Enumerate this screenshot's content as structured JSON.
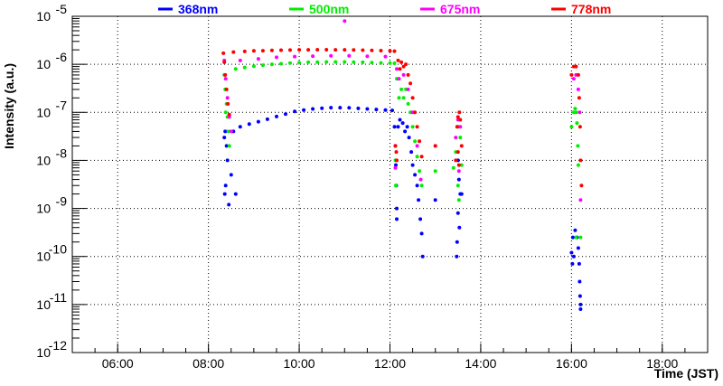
{
  "chart_data": {
    "type": "scatter",
    "xlabel": "Time (JST)",
    "ylabel": "Intensity (a.u.)",
    "x_unit": "hours",
    "xlim": [
      5.0,
      19.0
    ],
    "ylim": [
      1e-12,
      1e-05
    ],
    "yscale": "log",
    "grid": true,
    "legend_position": "top",
    "x_ticks": [
      {
        "value": 6,
        "label": "06:00"
      },
      {
        "value": 8,
        "label": "08:00"
      },
      {
        "value": 10,
        "label": "10:00"
      },
      {
        "value": 12,
        "label": "12:00"
      },
      {
        "value": 14,
        "label": "14:00"
      },
      {
        "value": 16,
        "label": "16:00"
      },
      {
        "value": 18,
        "label": "18:00"
      }
    ],
    "y_ticks": [
      {
        "value": 1e-12,
        "mantissa": "10",
        "exponent": "-12"
      },
      {
        "value": 1e-11,
        "mantissa": "10",
        "exponent": "-11"
      },
      {
        "value": 1e-10,
        "mantissa": "10",
        "exponent": "-10"
      },
      {
        "value": 1e-09,
        "mantissa": "10",
        "exponent": "-9"
      },
      {
        "value": 1e-08,
        "mantissa": "10",
        "exponent": "-8"
      },
      {
        "value": 1e-07,
        "mantissa": "10",
        "exponent": "-7"
      },
      {
        "value": 1e-06,
        "mantissa": "10",
        "exponent": "-6"
      },
      {
        "value": 1e-05,
        "mantissa": "10",
        "exponent": "-5"
      }
    ],
    "series": [
      {
        "name": "368nm",
        "color": "#0000ff",
        "points": [
          [
            8.35,
            3e-08
          ],
          [
            8.37,
            4e-08
          ],
          [
            8.4,
            2e-08
          ],
          [
            8.42,
            1e-08
          ],
          [
            8.38,
            3e-09
          ],
          [
            8.36,
            2e-09
          ],
          [
            8.45,
            1.2e-09
          ],
          [
            8.5,
            5e-09
          ],
          [
            8.6,
            2e-09
          ],
          [
            8.55,
            4e-08
          ],
          [
            8.7,
            5e-08
          ],
          [
            8.9,
            5.7e-08
          ],
          [
            9.1,
            6.4e-08
          ],
          [
            9.3,
            7.2e-08
          ],
          [
            9.5,
            8.2e-08
          ],
          [
            9.7,
            9.2e-08
          ],
          [
            9.9,
            1.05e-07
          ],
          [
            10.1,
            1.12e-07
          ],
          [
            10.3,
            1.18e-07
          ],
          [
            10.5,
            1.22e-07
          ],
          [
            10.7,
            1.25e-07
          ],
          [
            10.9,
            1.25e-07
          ],
          [
            11.1,
            1.24e-07
          ],
          [
            11.3,
            1.21e-07
          ],
          [
            11.5,
            1.18e-07
          ],
          [
            11.7,
            1.15e-07
          ],
          [
            11.9,
            1.12e-07
          ],
          [
            12.05,
            1.1e-07
          ],
          [
            12.1,
            5e-08
          ],
          [
            12.12,
            2e-08
          ],
          [
            12.13,
            8e-09
          ],
          [
            12.14,
            3e-09
          ],
          [
            12.15,
            1e-09
          ],
          [
            12.15,
            6e-10
          ],
          [
            12.18,
            5e-08
          ],
          [
            12.22,
            7e-08
          ],
          [
            12.28,
            6e-08
          ],
          [
            12.33,
            4e-08
          ],
          [
            12.38,
            5e-08
          ],
          [
            12.42,
            3e-08
          ],
          [
            12.47,
            1.5e-08
          ],
          [
            12.5,
            8e-09
          ],
          [
            12.55,
            5e-09
          ],
          [
            12.6,
            3e-09
          ],
          [
            12.63,
            1.5e-09
          ],
          [
            12.67,
            6e-10
          ],
          [
            12.7,
            3e-10
          ],
          [
            12.72,
            1e-10
          ],
          [
            13.0,
            1.5e-09
          ],
          [
            13.5,
            1e-08
          ],
          [
            13.52,
            4e-09
          ],
          [
            13.55,
            2e-09
          ],
          [
            13.5,
            8e-10
          ],
          [
            13.53,
            4e-10
          ],
          [
            13.48,
            2e-10
          ],
          [
            13.47,
            1e-10
          ],
          [
            13.58,
            2e-09
          ],
          [
            16.0,
            1.2e-10
          ],
          [
            16.03,
            2.5e-10
          ],
          [
            16.08,
            3.5e-10
          ],
          [
            16.12,
            2.5e-10
          ],
          [
            16.15,
            1.5e-10
          ],
          [
            16.17,
            7e-11
          ],
          [
            16.18,
            3e-11
          ],
          [
            16.19,
            1.5e-11
          ],
          [
            16.2,
            1e-11
          ],
          [
            16.2,
            8e-12
          ],
          [
            16.05,
            1e-10
          ],
          [
            16.02,
            7e-11
          ]
        ]
      },
      {
        "name": "500nm",
        "color": "#00ee00",
        "points": [
          [
            8.35,
            6e-07
          ],
          [
            8.37,
            3e-07
          ],
          [
            8.4,
            1.5e-07
          ],
          [
            8.42,
            8e-08
          ],
          [
            8.44,
            4e-08
          ],
          [
            8.46,
            2e-08
          ],
          [
            8.38,
            1e-07
          ],
          [
            8.6,
            8e-07
          ],
          [
            8.8,
            8.6e-07
          ],
          [
            9.0,
            9.1e-07
          ],
          [
            9.2,
            9.6e-07
          ],
          [
            9.4,
            1e-06
          ],
          [
            9.6,
            1.03e-06
          ],
          [
            9.8,
            1.06e-06
          ],
          [
            10.0,
            1.08e-06
          ],
          [
            10.2,
            1.1e-06
          ],
          [
            10.4,
            1.11e-06
          ],
          [
            10.6,
            1.12e-06
          ],
          [
            10.8,
            1.12e-06
          ],
          [
            11.0,
            1.12e-06
          ],
          [
            11.2,
            1.11e-06
          ],
          [
            11.4,
            1.1e-06
          ],
          [
            11.6,
            1.09e-06
          ],
          [
            11.8,
            1.07e-06
          ],
          [
            12.0,
            1.06e-06
          ],
          [
            12.1,
            1.05e-06
          ],
          [
            12.15,
            5e-07
          ],
          [
            12.12,
            1e-08
          ],
          [
            12.13,
            3e-09
          ],
          [
            12.2,
            2e-07
          ],
          [
            12.25,
            3e-07
          ],
          [
            12.3,
            2e-07
          ],
          [
            12.35,
            3e-07
          ],
          [
            12.4,
            1.5e-07
          ],
          [
            12.45,
            1e-07
          ],
          [
            12.5,
            5e-08
          ],
          [
            12.55,
            2.5e-08
          ],
          [
            12.6,
            1.2e-08
          ],
          [
            12.65,
            6e-09
          ],
          [
            12.7,
            3e-09
          ],
          [
            13.0,
            6e-09
          ],
          [
            13.4,
            7e-09
          ],
          [
            13.45,
            1.5e-08
          ],
          [
            13.5,
            5e-08
          ],
          [
            13.55,
            3e-08
          ],
          [
            13.5,
            3e-09
          ],
          [
            13.52,
            1.5e-09
          ],
          [
            13.58,
            8e-09
          ],
          [
            16.0,
            5e-08
          ],
          [
            16.05,
            1e-07
          ],
          [
            16.08,
            1.2e-07
          ],
          [
            16.1,
            1e-07
          ],
          [
            16.12,
            6e-08
          ],
          [
            16.14,
            2e-08
          ],
          [
            16.15,
            8e-09
          ],
          [
            16.1,
            2.5e-10
          ],
          [
            16.2,
            2.5e-10
          ]
        ]
      },
      {
        "name": "675nm",
        "color": "#ff00ff",
        "points": [
          [
            8.35,
            1.2e-06
          ],
          [
            8.38,
            5e-07
          ],
          [
            8.42,
            2e-07
          ],
          [
            8.46,
            8e-08
          ],
          [
            8.5,
            4e-08
          ],
          [
            8.7,
            1.2e-06
          ],
          [
            9.1,
            1.3e-06
          ],
          [
            9.5,
            1.4e-06
          ],
          [
            9.9,
            1.45e-06
          ],
          [
            10.3,
            1.48e-06
          ],
          [
            10.7,
            1.5e-06
          ],
          [
            11.0,
            8e-06
          ],
          [
            11.1,
            1.5e-06
          ],
          [
            11.5,
            1.47e-06
          ],
          [
            11.9,
            1.45e-06
          ],
          [
            12.15,
            8e-07
          ],
          [
            12.12,
            7e-09
          ],
          [
            12.2,
            5e-07
          ],
          [
            12.3,
            6e-07
          ],
          [
            12.4,
            3e-07
          ],
          [
            12.5,
            1e-07
          ],
          [
            12.6,
            2e-08
          ],
          [
            12.68,
            4e-09
          ],
          [
            13.0,
            2e-08
          ],
          [
            13.45,
            3e-08
          ],
          [
            13.5,
            7e-08
          ],
          [
            13.55,
            5e-08
          ],
          [
            13.52,
            6e-09
          ],
          [
            16.05,
            5e-07
          ],
          [
            16.1,
            6e-07
          ],
          [
            16.15,
            3e-07
          ],
          [
            16.18,
            1e-07
          ],
          [
            16.2,
            1.5e-09
          ]
        ]
      },
      {
        "name": "778nm",
        "color": "#ff0000",
        "points": [
          [
            8.33,
            1.7e-06
          ],
          [
            8.35,
            1.1e-06
          ],
          [
            8.37,
            6e-07
          ],
          [
            8.4,
            3e-07
          ],
          [
            8.43,
            1.5e-07
          ],
          [
            8.46,
            9e-08
          ],
          [
            8.55,
            1.8e-06
          ],
          [
            8.8,
            1.85e-06
          ],
          [
            9.0,
            1.9e-06
          ],
          [
            9.2,
            1.92e-06
          ],
          [
            9.4,
            1.95e-06
          ],
          [
            9.6,
            1.97e-06
          ],
          [
            9.8,
            1.98e-06
          ],
          [
            10.0,
            2e-06
          ],
          [
            10.2,
            2e-06
          ],
          [
            10.4,
            2.01e-06
          ],
          [
            10.6,
            2.01e-06
          ],
          [
            10.8,
            2e-06
          ],
          [
            11.0,
            2e-06
          ],
          [
            11.2,
            1.99e-06
          ],
          [
            11.4,
            1.97e-06
          ],
          [
            11.6,
            1.95e-06
          ],
          [
            11.8,
            1.93e-06
          ],
          [
            12.0,
            1.9e-06
          ],
          [
            12.1,
            1.88e-06
          ],
          [
            12.12,
            2e-08
          ],
          [
            12.14,
            1.5e-08
          ],
          [
            12.15,
            1e-08
          ],
          [
            12.18,
            1.2e-06
          ],
          [
            12.22,
            8e-07
          ],
          [
            12.25,
            1.1e-06
          ],
          [
            12.3,
            9e-07
          ],
          [
            12.35,
            1e-06
          ],
          [
            12.4,
            6e-07
          ],
          [
            12.45,
            4e-07
          ],
          [
            12.5,
            2e-07
          ],
          [
            12.55,
            1e-07
          ],
          [
            12.6,
            5e-08
          ],
          [
            12.65,
            2.5e-08
          ],
          [
            12.7,
            1.2e-08
          ],
          [
            13.0,
            2e-08
          ],
          [
            13.45,
            1e-08
          ],
          [
            13.48,
            5e-08
          ],
          [
            13.5,
            8e-08
          ],
          [
            13.53,
            1e-07
          ],
          [
            13.55,
            7e-08
          ],
          [
            13.58,
            2e-08
          ],
          [
            13.5,
            1.5e-08
          ],
          [
            13.52,
            8e-09
          ],
          [
            16.0,
            6e-07
          ],
          [
            16.05,
            9e-07
          ],
          [
            16.1,
            9e-07
          ],
          [
            16.15,
            6e-07
          ],
          [
            16.17,
            2e-07
          ],
          [
            16.19,
            5e-08
          ],
          [
            16.2,
            1e-08
          ],
          [
            16.22,
            3e-09
          ]
        ]
      }
    ]
  }
}
